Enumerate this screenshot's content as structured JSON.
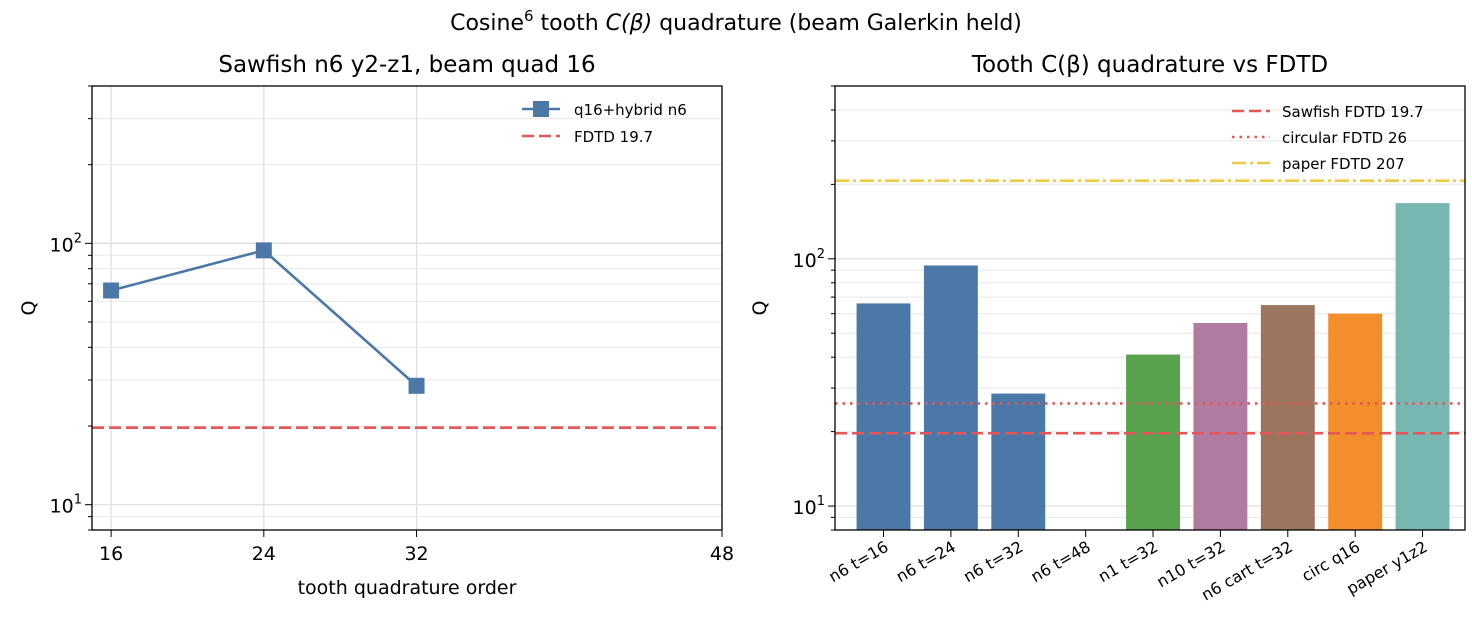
{
  "figure": {
    "suptitle_pre": "Cosine",
    "suptitle_sup": "6",
    "suptitle_mid": " tooth ",
    "suptitle_math": "C(β)",
    "suptitle_post": " quadrature (beam Galerkin held)"
  },
  "chart_data": [
    {
      "type": "line",
      "title": "Sawfish n6 y2-z1, beam quad 16",
      "xlabel": "tooth quadrature order",
      "ylabel": "Q",
      "yscale": "log",
      "xlim": [
        15,
        48
      ],
      "ylim": [
        8,
        400
      ],
      "x_ticks": [
        16,
        24,
        32,
        48
      ],
      "y_ticks": [
        {
          "value": 10,
          "base": "10",
          "exp": "1"
        },
        {
          "value": 100,
          "base": "10",
          "exp": "2"
        }
      ],
      "grid": true,
      "legend_position": "top-right",
      "series": [
        {
          "name": "q16+hybrid n6",
          "color": "#4c78a8",
          "marker": "square",
          "x": [
            16,
            24,
            32
          ],
          "y": [
            66,
            94,
            28.5
          ]
        }
      ],
      "reference_lines": [
        {
          "name": "FDTD 19.7",
          "value": 19.7,
          "color": "#e45756",
          "style": "dashed"
        }
      ]
    },
    {
      "type": "bar",
      "title": "Tooth C(β) quadrature vs FDTD",
      "ylabel": "Q",
      "yscale": "log",
      "ylim": [
        8,
        500
      ],
      "y_ticks": [
        {
          "value": 10,
          "base": "10",
          "exp": "1"
        },
        {
          "value": 100,
          "base": "10",
          "exp": "2"
        }
      ],
      "grid": true,
      "legend_position": "top-right",
      "categories": [
        "n6 t=16",
        "n6 t=24",
        "n6 t=32",
        "n6 t=48",
        "n1 t=32",
        "n10 t=32",
        "n6 cart t=32",
        "circ q16",
        "paper y1z2"
      ],
      "values": [
        66,
        94,
        28.5,
        null,
        41,
        55,
        65,
        60,
        168
      ],
      "colors": [
        "#4c78a8",
        "#4c78a8",
        "#4c78a8",
        "#4c78a8",
        "#59a14f",
        "#b07aa1",
        "#9c755f",
        "#f28e2b",
        "#76b7b2"
      ],
      "reference_lines": [
        {
          "name": "Sawfish FDTD 19.7",
          "value": 19.7,
          "color": "#e45756",
          "style": "dashed"
        },
        {
          "name": "circular FDTD 26",
          "value": 26,
          "color": "#e45756",
          "style": "dotted"
        },
        {
          "name": "paper FDTD 207",
          "value": 207,
          "color": "#edc948",
          "style": "dashdot"
        }
      ]
    }
  ]
}
